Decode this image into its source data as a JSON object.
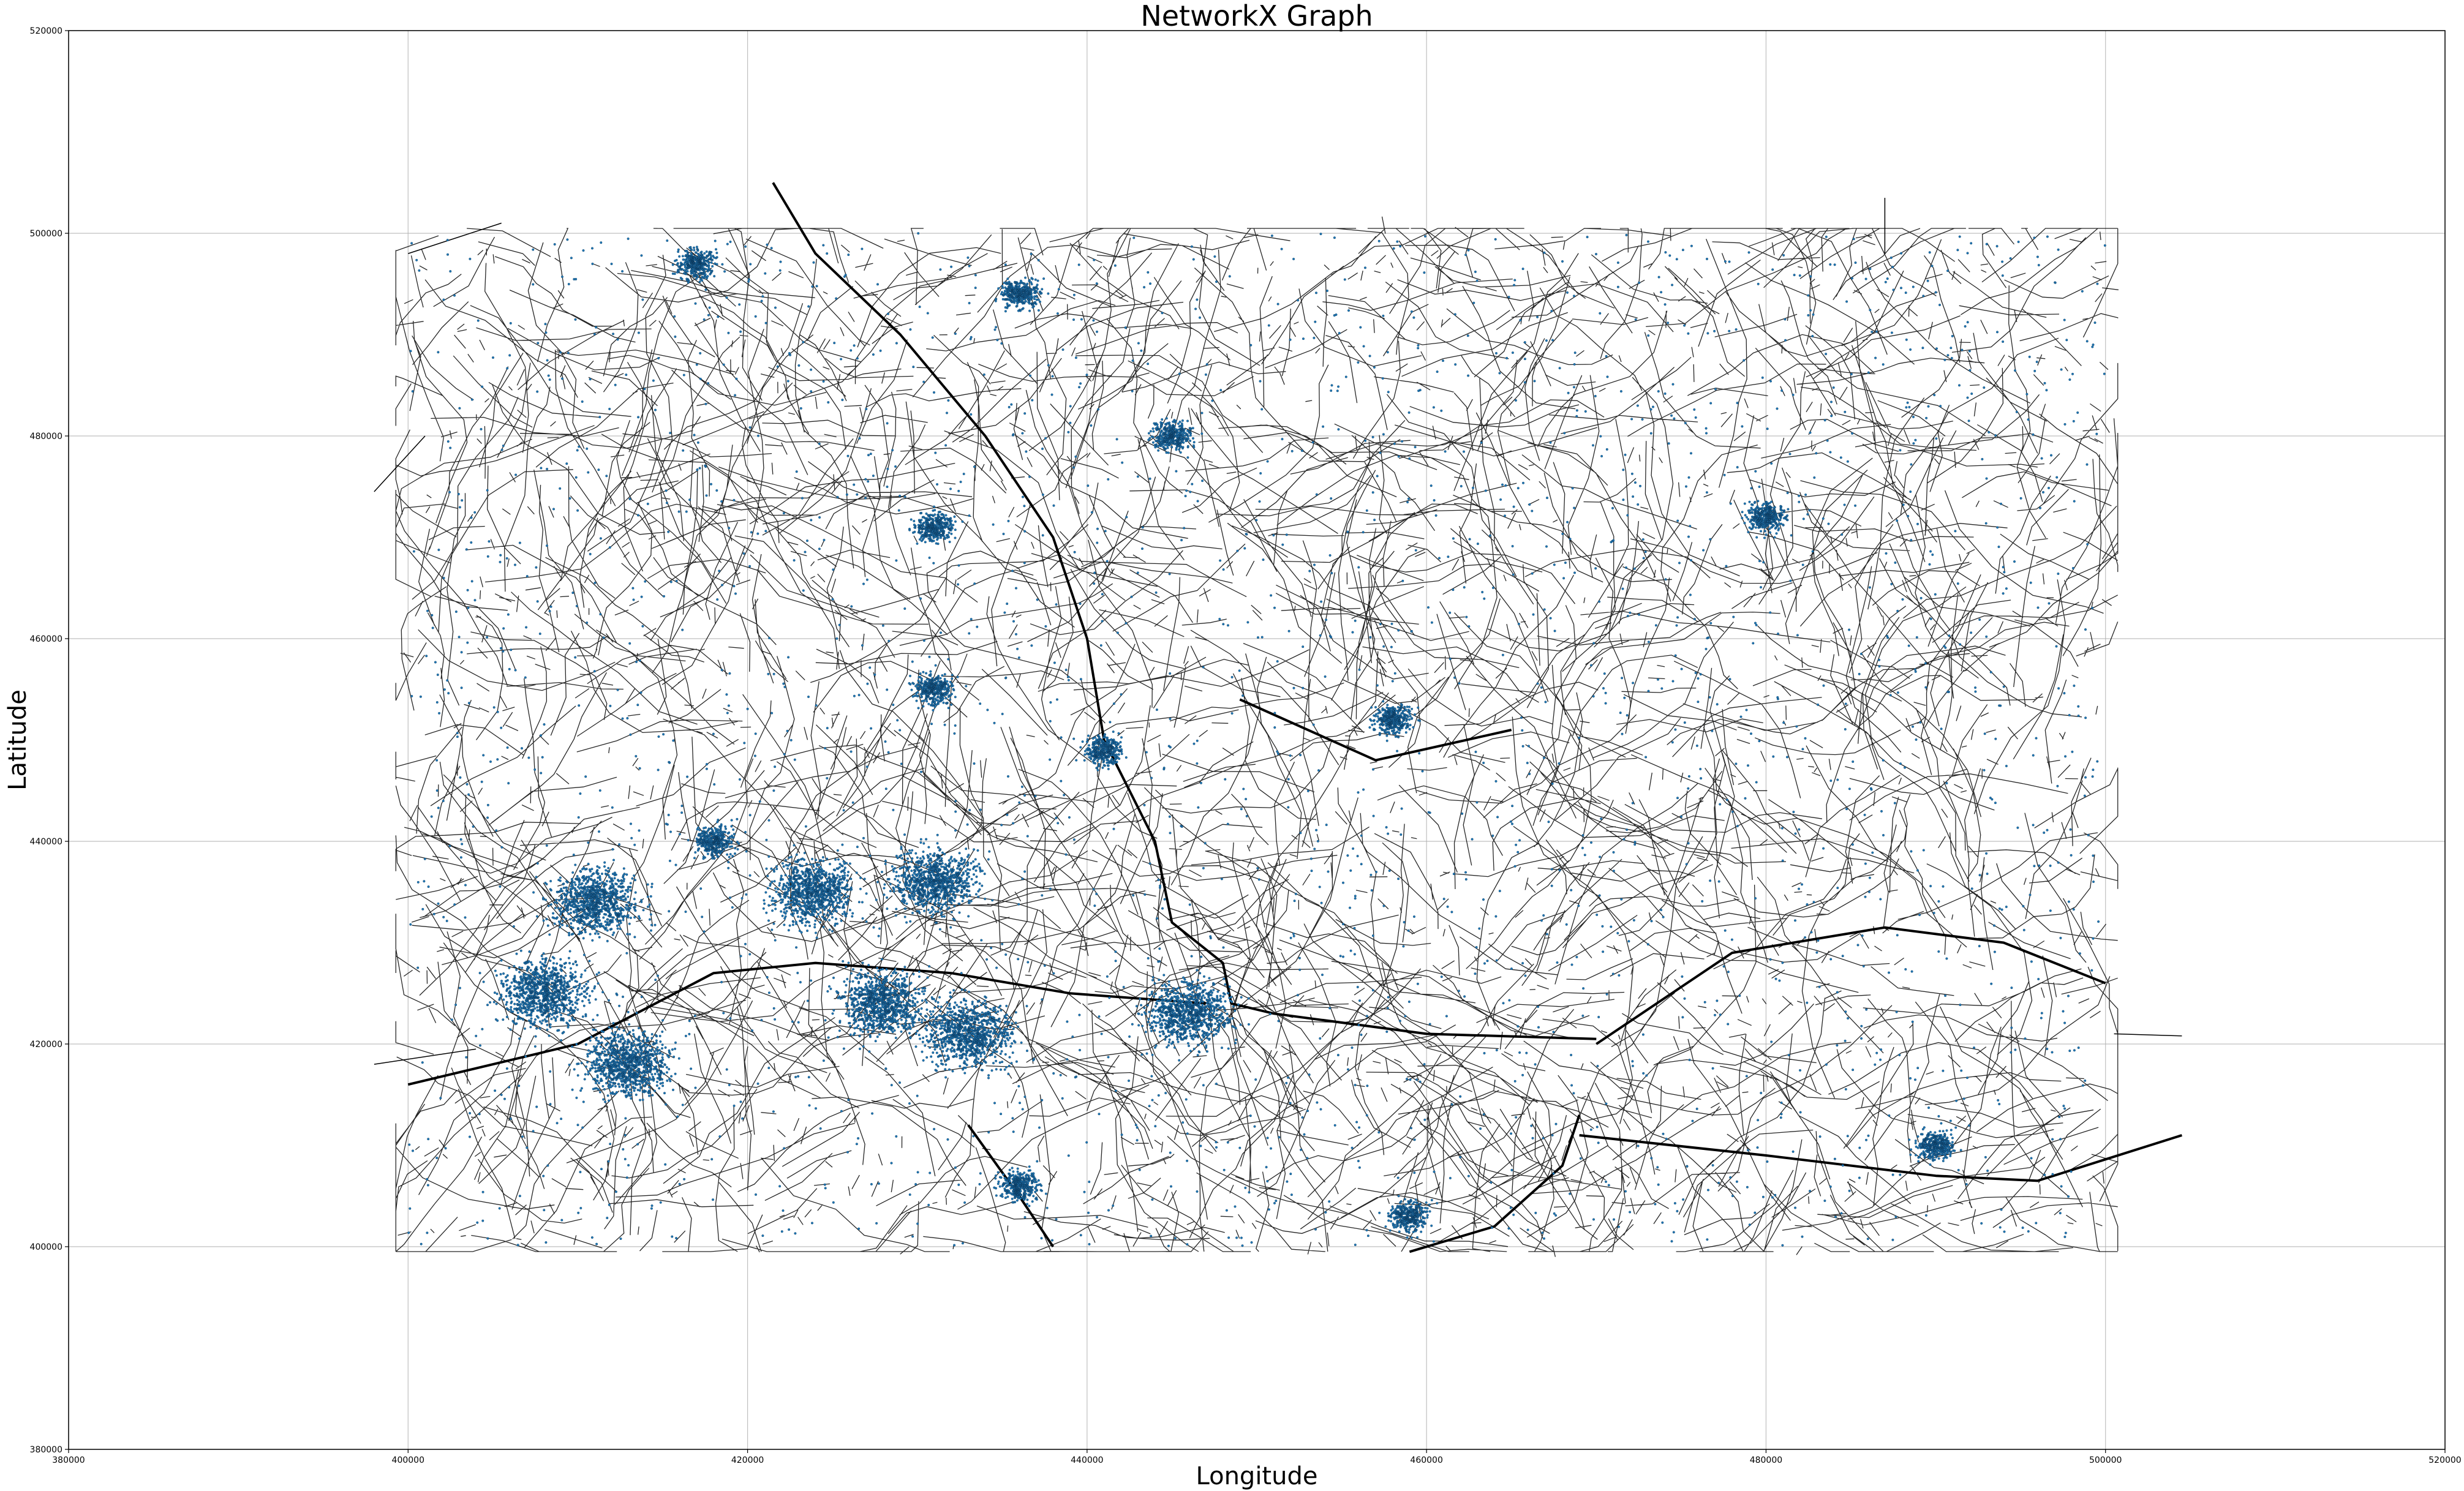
{
  "chart_data": {
    "type": "network",
    "title": "NetworkX Graph",
    "xlabel": "Longitude",
    "ylabel": "Latitude",
    "xlim": [
      380000,
      520000
    ],
    "ylim": [
      380000,
      520000
    ],
    "xticks": [
      "380000",
      "400000",
      "420000",
      "440000",
      "460000",
      "480000",
      "500000",
      "520000"
    ],
    "yticks": [
      "380000",
      "400000",
      "420000",
      "440000",
      "460000",
      "480000",
      "500000",
      "520000"
    ],
    "grid": true,
    "node_color": "#1f77b4",
    "edge_color": "#000000",
    "data_extent": {
      "x": [
        398000,
        504500
      ],
      "y": [
        399500,
        505000
      ]
    },
    "dense_clusters": [
      {
        "x": 411000,
        "y": 434000
      },
      {
        "x": 408000,
        "y": 425000
      },
      {
        "x": 413000,
        "y": 418000
      },
      {
        "x": 424000,
        "y": 435000
      },
      {
        "x": 431000,
        "y": 436000
      },
      {
        "x": 428000,
        "y": 424000
      },
      {
        "x": 433000,
        "y": 421000
      },
      {
        "x": 446000,
        "y": 423000
      },
      {
        "x": 458000,
        "y": 452000
      },
      {
        "x": 431000,
        "y": 455000
      },
      {
        "x": 436000,
        "y": 406000
      },
      {
        "x": 459000,
        "y": 403000
      },
      {
        "x": 490000,
        "y": 410000
      },
      {
        "x": 480000,
        "y": 472000
      },
      {
        "x": 417000,
        "y": 497000
      },
      {
        "x": 436000,
        "y": 494000
      },
      {
        "x": 445000,
        "y": 480000
      },
      {
        "x": 431000,
        "y": 471000
      },
      {
        "x": 441000,
        "y": 449000
      },
      {
        "x": 418000,
        "y": 440000
      }
    ],
    "major_roads": [
      [
        [
          421500,
          505000
        ],
        [
          424000,
          498000
        ],
        [
          429000,
          490000
        ],
        [
          434000,
          480000
        ],
        [
          438000,
          470000
        ],
        [
          440000,
          460000
        ],
        [
          441000,
          450000
        ],
        [
          444000,
          440000
        ],
        [
          445000,
          432000
        ],
        [
          448000,
          428000
        ],
        [
          448500,
          424000
        ],
        [
          451000,
          423000
        ],
        [
          460000,
          421000
        ],
        [
          470000,
          420500
        ]
      ],
      [
        [
          400000,
          416000
        ],
        [
          410000,
          420000
        ],
        [
          418000,
          427000
        ],
        [
          424000,
          428000
        ],
        [
          432000,
          427000
        ],
        [
          439000,
          425000
        ],
        [
          447000,
          424000
        ]
      ],
      [
        [
          469000,
          411000
        ],
        [
          480000,
          409000
        ],
        [
          490000,
          407000
        ],
        [
          496000,
          406500
        ],
        [
          504500,
          411000
        ]
      ],
      [
        [
          459000,
          399500
        ],
        [
          464000,
          402000
        ],
        [
          468000,
          408000
        ],
        [
          469000,
          413000
        ]
      ],
      [
        [
          470000,
          420000
        ],
        [
          478000,
          429000
        ],
        [
          487000,
          431500
        ],
        [
          494000,
          430000
        ],
        [
          500000,
          426000
        ]
      ],
      [
        [
          433000,
          412000
        ],
        [
          436000,
          405000
        ],
        [
          438000,
          400000
        ]
      ],
      [
        [
          449000,
          454000
        ],
        [
          457000,
          448000
        ],
        [
          465000,
          451000
        ]
      ]
    ]
  }
}
